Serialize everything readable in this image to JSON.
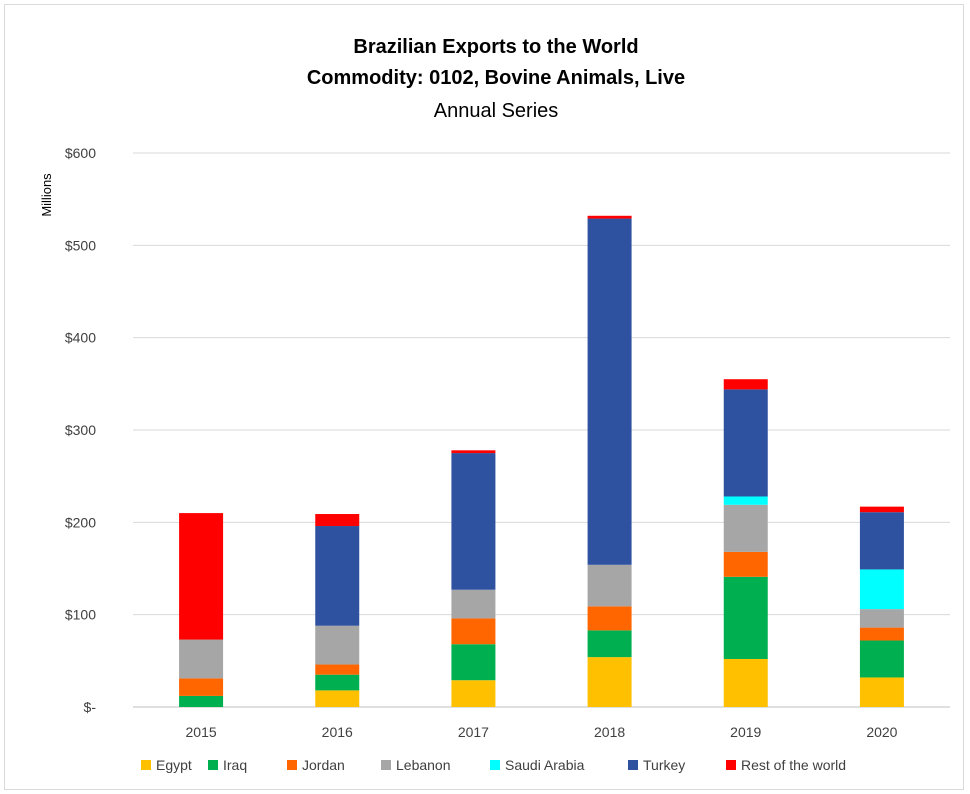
{
  "chart_data": {
    "type": "bar",
    "stacked": true,
    "title_line1": "Brazilian Exports to the World",
    "title_line2": "Commodity: 0102, Bovine Animals, Live",
    "subtitle": "Annual Series",
    "ylabel": "Millions",
    "xlabel": "",
    "categories": [
      "2015",
      "2016",
      "2017",
      "2018",
      "2019",
      "2020"
    ],
    "ylim": [
      0,
      600
    ],
    "y_ticks": [
      0,
      100,
      200,
      300,
      400,
      500,
      600
    ],
    "y_tick_labels": [
      "$-",
      "$100",
      "$200",
      "$300",
      "$400",
      "$500",
      "$600"
    ],
    "grid": true,
    "legend_position": "bottom",
    "series": [
      {
        "name": "Egypt",
        "color": "#FFC000",
        "values": [
          0,
          18,
          29,
          54,
          52,
          32
        ]
      },
      {
        "name": "Iraq",
        "color": "#00B050",
        "values": [
          12,
          17,
          39,
          29,
          89,
          40
        ]
      },
      {
        "name": "Jordan",
        "color": "#FF6600",
        "values": [
          19,
          11,
          28,
          26,
          27,
          14
        ]
      },
      {
        "name": "Lebanon",
        "color": "#A6A6A6",
        "values": [
          42,
          42,
          31,
          45,
          51,
          20
        ]
      },
      {
        "name": "Saudi Arabia",
        "color": "#00FFFF",
        "values": [
          0,
          0,
          0,
          0,
          9,
          43
        ]
      },
      {
        "name": "Turkey",
        "color": "#2F52A0",
        "values": [
          0,
          108,
          148,
          375,
          116,
          62
        ]
      },
      {
        "name": "Rest of the world",
        "color": "#FF0000",
        "values": [
          137,
          13,
          3,
          3,
          11,
          6
        ]
      }
    ]
  }
}
